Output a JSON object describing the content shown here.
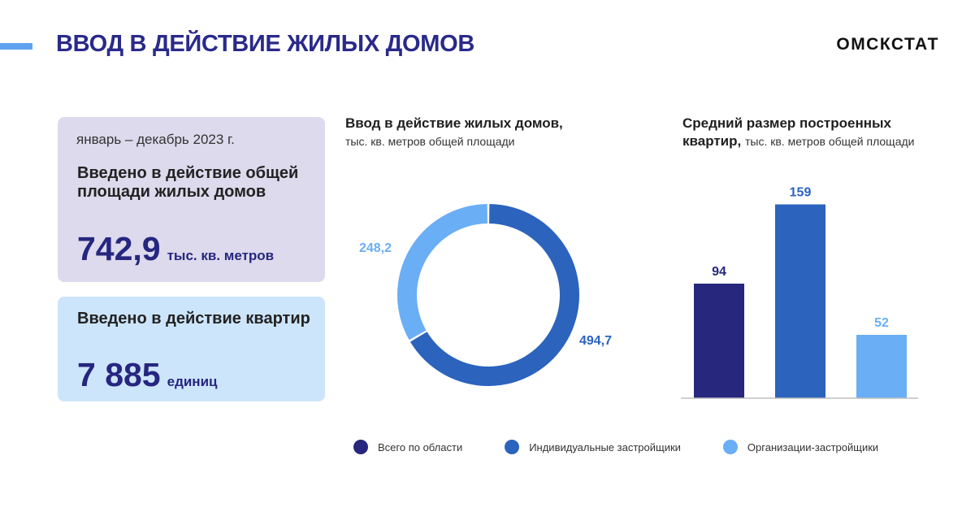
{
  "header": {
    "title": "ВВОД В ДЕЙСТВИЕ ЖИЛЫХ ДОМОВ",
    "brand": "ОМСКСТАТ"
  },
  "cards": {
    "area": {
      "period": "январь – декабрь 2023 г.",
      "heading": "Введено в действие общей площади жилых домов",
      "value": "742,9",
      "unit": "тыс. кв. метров"
    },
    "flats": {
      "heading": "Введено в действие квартир",
      "value": "7 885",
      "unit": "единиц"
    }
  },
  "colors": {
    "total": "#27277e",
    "individual": "#2b63bd",
    "organizations": "#6aaef5",
    "accent": "#5fa3ee"
  },
  "chart_data": [
    {
      "type": "pie",
      "title": "Ввод в действие жилых домов,",
      "subtitle": "тыс. кв. метров общей площади",
      "slices": [
        {
          "name": "Индивидуальные застройщики",
          "value": 494.7,
          "label": "494,7",
          "color": "#2b63bd"
        },
        {
          "name": "Организации-застройщики",
          "value": 248.2,
          "label": "248,2",
          "color": "#6aaef5"
        }
      ]
    },
    {
      "type": "bar",
      "title": "Средний размер построенных квартир,",
      "subtitle": "тыс. кв. метров общей площади",
      "categories": [
        "Всего по области",
        "Индивидуальные застройщики",
        "Организации-застройщики"
      ],
      "values": [
        94,
        159,
        52
      ],
      "labels": [
        "94",
        "159",
        "52"
      ],
      "colors": [
        "#27277e",
        "#2b63bd",
        "#6aaef5"
      ],
      "ylim": [
        0,
        180
      ]
    }
  ],
  "legend": [
    {
      "label": "Всего по области",
      "color": "#27277e"
    },
    {
      "label": "Индивидуальные застройщики",
      "color": "#2b63bd"
    },
    {
      "label": "Организации-застройщики",
      "color": "#6aaef5"
    }
  ]
}
